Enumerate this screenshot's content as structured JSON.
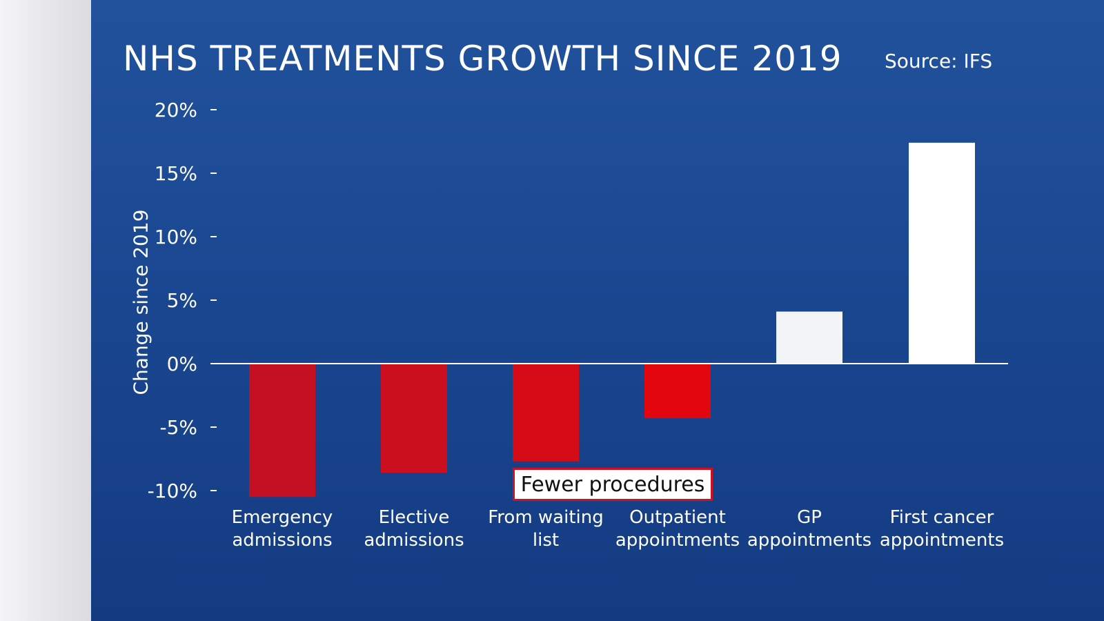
{
  "chart_data": {
    "type": "bar",
    "title": "NHS TREATMENTS GROWTH SINCE 2019",
    "source": "Source: IFS",
    "ylabel": "Change since 2019",
    "xlabel": "",
    "ylim": [
      -10,
      20
    ],
    "yticks": [
      20,
      15,
      10,
      5,
      0,
      -5,
      -10
    ],
    "ytick_labels": [
      "20%",
      "15%",
      "10%",
      "5%",
      "0%",
      "-5%",
      "-10%"
    ],
    "categories": [
      [
        "Emergency",
        "admissions"
      ],
      [
        "Elective",
        "admissions"
      ],
      [
        "From waiting",
        "list"
      ],
      [
        "Outpatient",
        "appointments"
      ],
      [
        "GP",
        "appointments"
      ],
      [
        "First cancer",
        "appointments"
      ]
    ],
    "values": [
      -10.5,
      -8.6,
      -7.7,
      -4.3,
      4.1,
      17.4
    ],
    "bar_colors": [
      "#c41022",
      "#cc0f1f",
      "#d50c18",
      "#e3060f",
      "#f2f4f8",
      "#ffffff"
    ],
    "annotation": "Fewer procedures",
    "grid": false,
    "colors": {
      "background": "#1a4690",
      "negative": "#d0101e",
      "positive": "#ffffff"
    }
  }
}
